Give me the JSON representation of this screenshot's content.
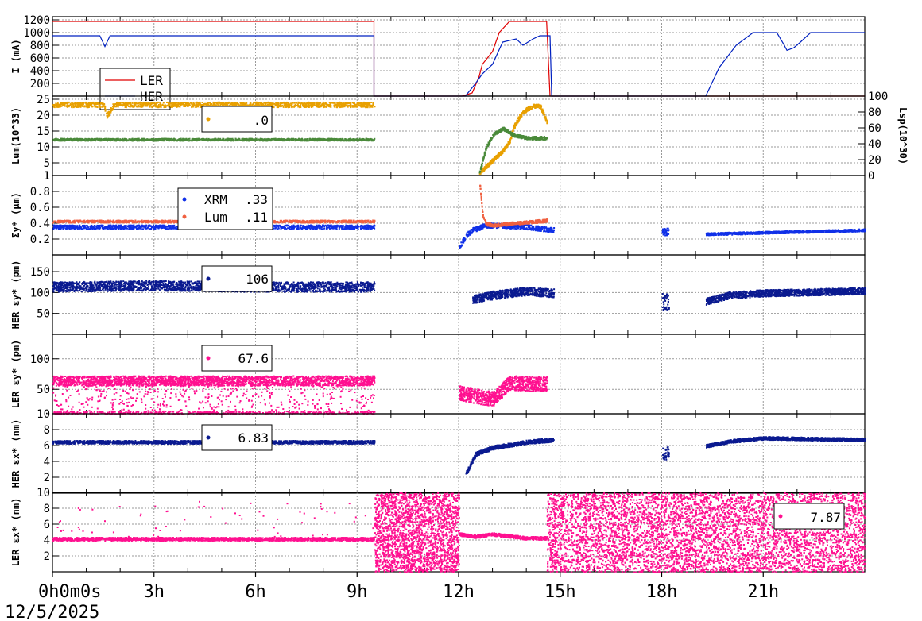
{
  "x_axis": {
    "range_hours": [
      0,
      24
    ],
    "tick_hours": [
      0,
      3,
      6,
      9,
      12,
      15,
      18,
      21
    ],
    "tick_labels": [
      "0h0m0s",
      "3h",
      "6h",
      "9h",
      "12h",
      "15h",
      "18h",
      "21h"
    ],
    "date": "12/5/2025",
    "grid": true
  },
  "colors": {
    "ler_current": "#e00000",
    "her_current": "#0020c0",
    "lum_orange": "#e8a000",
    "lum_green": "#4a8a3a",
    "xrm_blue": "#1030e8",
    "lum_salmon": "#f06040",
    "her_navy": "#0a1a90",
    "ler_pink": "#ff1090"
  },
  "chart_data": [
    {
      "type": "line",
      "ylabel": "I (mA)",
      "ylim": [
        0,
        1250
      ],
      "yticks": [
        200,
        400,
        600,
        800,
        1000,
        1200
      ],
      "series": [
        {
          "name": "LER",
          "x": [
            0,
            9.5,
            9.5,
            12.1,
            12.4,
            12.6,
            12.7,
            13.0,
            13.2,
            13.5,
            14.0,
            14.4,
            14.6,
            14.7,
            24
          ],
          "y": [
            1175,
            1175,
            0,
            0,
            50,
            300,
            500,
            700,
            1000,
            1175,
            1175,
            1175,
            1175,
            0,
            0
          ]
        },
        {
          "name": "HER",
          "x": [
            0,
            1.4,
            1.55,
            1.7,
            9.5,
            9.5,
            12.2,
            12.5,
            12.7,
            13.0,
            13.3,
            13.7,
            13.9,
            14.2,
            14.4,
            14.6,
            14.7,
            14.75,
            19.3,
            19.7,
            20.2,
            20.7,
            20.9,
            21.4,
            21.6,
            21.7,
            21.9,
            22.1,
            22.4,
            24
          ],
          "y": [
            950,
            950,
            780,
            950,
            950,
            0,
            0,
            200,
            350,
            500,
            850,
            900,
            800,
            900,
            950,
            950,
            950,
            0,
            0,
            450,
            800,
            1000,
            1000,
            1000,
            820,
            720,
            760,
            850,
            1000,
            1000
          ]
        }
      ]
    },
    {
      "type": "scatter",
      "ylabel": "Lum(10^33)",
      "ylim": [
        1,
        26
      ],
      "yticks": [
        1,
        5,
        10,
        15,
        20,
        25
      ],
      "ylabel_right": "Lsp(10^30)",
      "ylim_right": [
        0,
        100
      ],
      "yticks_right": [
        0,
        20,
        40,
        60,
        80,
        100
      ],
      "legend_value": ".0",
      "series": [
        {
          "name": "orange",
          "x": [
            0,
            1.5,
            1.6,
            1.8,
            3,
            6,
            9.5,
            12.6,
            12.7,
            13.0,
            13.3,
            13.5,
            13.6,
            13.8,
            14.0,
            14.2,
            14.4,
            14.6
          ],
          "y": [
            23.5,
            23.5,
            20,
            23.5,
            23.5,
            23.5,
            23.5,
            2,
            3,
            6,
            9,
            12,
            16,
            20,
            22,
            23,
            23,
            18
          ]
        },
        {
          "name": "green",
          "x": [
            0,
            3,
            6,
            9.5,
            12.6,
            12.8,
            13.0,
            13.3,
            13.6,
            14.0,
            14.4,
            14.6
          ],
          "y": [
            12.5,
            12.5,
            12.5,
            12.5,
            2,
            10,
            14,
            16,
            14,
            13,
            13,
            13
          ]
        }
      ]
    },
    {
      "type": "scatter",
      "ylabel": "Σy* (μm)",
      "ylim": [
        0,
        1.0
      ],
      "yticks": [
        0.2,
        0.4,
        0.6,
        0.8,
        1
      ],
      "legend": [
        {
          "label": "XRM",
          "value": ".33"
        },
        {
          "label": "Lum",
          "value": ".11"
        }
      ],
      "series": [
        {
          "name": "XRM",
          "x": [
            0,
            9.5,
            12.0,
            12.2,
            12.4,
            12.6,
            12.8,
            13.0,
            14.0,
            14.8,
            18.0,
            18.2,
            19.3,
            24
          ],
          "y": [
            0.36,
            0.36,
            0.1,
            0.25,
            0.32,
            0.35,
            0.38,
            0.38,
            0.36,
            0.32,
            0.3,
            0.3,
            0.27,
            0.32
          ]
        },
        {
          "name": "Lum",
          "x": [
            0,
            9.5,
            12.6,
            12.7,
            12.8,
            13.0,
            14.0,
            14.6
          ],
          "y": [
            0.43,
            0.43,
            0.95,
            0.5,
            0.4,
            0.38,
            0.42,
            0.44
          ]
        }
      ]
    },
    {
      "type": "scatter",
      "ylabel": "HER εy* (pm)",
      "ylim": [
        0,
        190
      ],
      "yticks": [
        50,
        100,
        150
      ],
      "legend_value": "106",
      "series": [
        {
          "name": "HER",
          "x": [
            0,
            3,
            6,
            9.5,
            12.4,
            13.0,
            14.0,
            14.8,
            18.0,
            19.3,
            20.0,
            21.0,
            24
          ],
          "y": [
            115,
            118,
            115,
            115,
            85,
            95,
            105,
            100,
            80,
            80,
            95,
            100,
            105
          ]
        }
      ]
    },
    {
      "type": "scatter",
      "ylabel": "LER εy* (pm)",
      "ylim": [
        10,
        140
      ],
      "yticks": [
        10,
        50,
        100
      ],
      "legend_value": "67.6",
      "series": [
        {
          "name": "LER",
          "x": [
            0,
            3,
            6,
            9.5,
            12.0,
            12.5,
            13.0,
            13.5,
            14.0,
            14.6
          ],
          "y": [
            65,
            65,
            65,
            65,
            45,
            40,
            35,
            62,
            60,
            60
          ]
        }
      ]
    },
    {
      "type": "scatter",
      "ylabel": "HER εx* (nm)",
      "ylim": [
        0,
        10
      ],
      "yticks": [
        2,
        4,
        6,
        8
      ],
      "legend_value": "6.83",
      "series": [
        {
          "name": "HER",
          "x": [
            0,
            3,
            6,
            9.5,
            12.2,
            12.5,
            13.0,
            14.0,
            14.8,
            18.0,
            19.3,
            20.0,
            21.0,
            24
          ],
          "y": [
            6.5,
            6.5,
            6.5,
            6.5,
            2.5,
            5.0,
            5.8,
            6.5,
            6.8,
            5.0,
            6.0,
            6.6,
            7.0,
            6.8
          ]
        }
      ]
    },
    {
      "type": "scatter",
      "ylabel": "LER εx* (nm)",
      "ylim": [
        0,
        10
      ],
      "yticks": [
        2,
        4,
        6,
        8,
        10
      ],
      "legend_value": "7.87",
      "series": [
        {
          "name": "LER",
          "x": [
            0,
            3,
            6,
            9.5,
            12.0,
            12.5,
            13.0,
            14.0,
            14.6
          ],
          "y": [
            4.2,
            4.2,
            4.2,
            4.2,
            4.8,
            4.5,
            4.8,
            4.3,
            4.3
          ]
        }
      ]
    }
  ]
}
